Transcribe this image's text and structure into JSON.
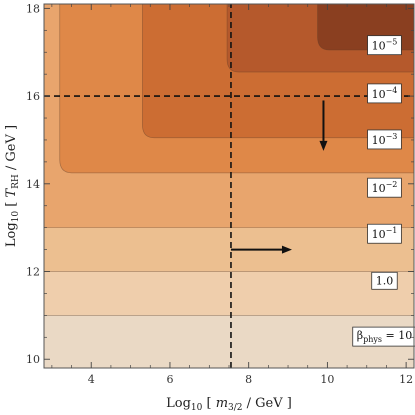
{
  "chart_data": {
    "type": "contour",
    "xlabel": "Log10 [ m3/2 / GeV ]",
    "ylabel": "Log10 [ TRH / GeV ]",
    "xlim": [
      2.8,
      12.2
    ],
    "ylim": [
      9.8,
      18.1
    ],
    "x_ticks": [
      4,
      6,
      8,
      10,
      12
    ],
    "y_ticks": [
      10,
      12,
      14,
      16,
      18
    ],
    "x_tick_labels": [
      "4",
      "6",
      "8",
      "10",
      "12"
    ],
    "y_tick_labels": [
      "10",
      "12",
      "14",
      "16",
      "18"
    ],
    "dashed_lines": {
      "vertical_x": 7.55,
      "horizontal_y": 16.0
    },
    "arrows": [
      {
        "from": [
          7.55,
          12.5
        ],
        "to": [
          9.1,
          12.5
        ]
      },
      {
        "from": [
          9.9,
          15.9
        ],
        "to": [
          9.9,
          14.75
        ]
      }
    ],
    "contour_bands": [
      {
        "label": "βphys = 10",
        "label_x": 11.45,
        "label_y": 10.55,
        "floor_y": 9.8,
        "ceil_y": 11.0,
        "x0": null,
        "y0": null,
        "color": "#ead9c5"
      },
      {
        "label": "1.0",
        "label_x": 11.45,
        "label_y": 11.8,
        "floor_y": 11.0,
        "ceil_y": 12.0,
        "x0": null,
        "y0": null,
        "color": "#efceac"
      },
      {
        "label": "10^-1",
        "label_x": 11.45,
        "label_y": 12.85,
        "floor_y": 12.0,
        "ceil_y": 13.0,
        "x0": null,
        "y0": null,
        "color": "#ecbf90"
      },
      {
        "label": "10^-2",
        "label_x": 11.45,
        "label_y": 13.9,
        "floor_y": 13.0,
        "ceil_y": 18.1,
        "x0": null,
        "y0": null,
        "color": "#e8a56d"
      },
      {
        "label": "10^-3",
        "label_x": 11.45,
        "label_y": 15.0,
        "floor_y": 14.25,
        "ceil_y": 18.1,
        "x0": 3.2,
        "y0": 14.25,
        "color": "#df8848"
      },
      {
        "label": "10^-4",
        "label_x": 11.45,
        "label_y": 16.05,
        "floor_y": 15.05,
        "ceil_y": 18.1,
        "x0": 5.3,
        "y0": 15.05,
        "color": "#cc6d33"
      },
      {
        "label": "10^-5",
        "label_x": 11.45,
        "label_y": 17.15,
        "floor_y": 16.55,
        "ceil_y": 18.1,
        "x0": 7.45,
        "y0": 16.55,
        "color": "#b5592c"
      },
      {
        "label": "",
        "label_x": null,
        "label_y": null,
        "floor_y": 17.05,
        "ceil_y": 18.1,
        "x0": 9.75,
        "y0": 17.05,
        "color": "#8a3f20"
      }
    ],
    "grid": false,
    "legend": "none"
  }
}
